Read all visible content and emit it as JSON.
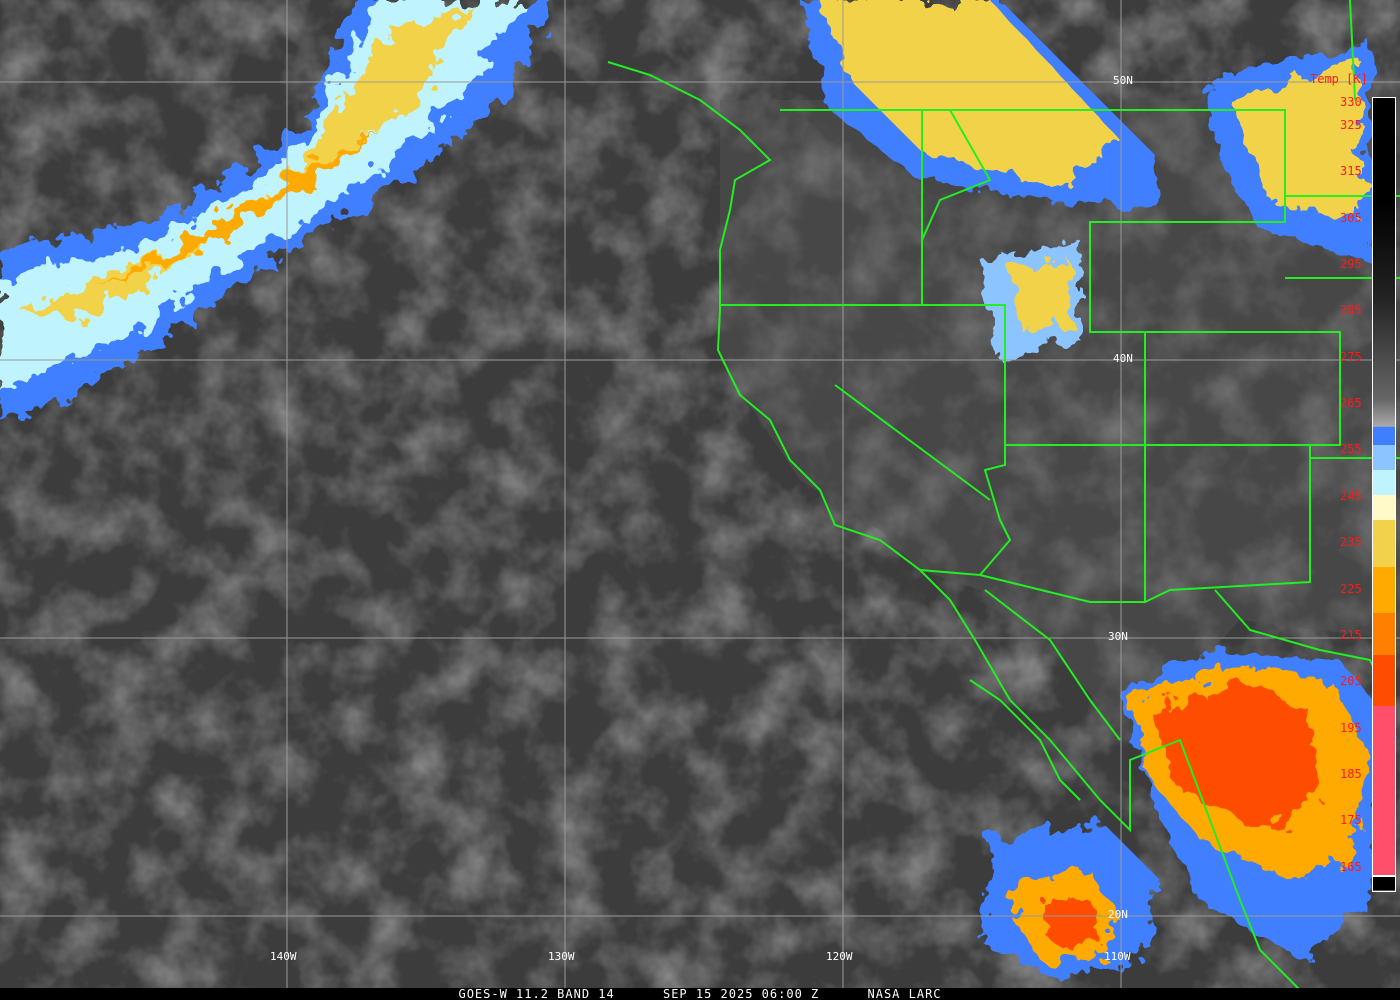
{
  "caption": {
    "satellite": "GOES-W 11.2 BAND 14",
    "datetime": "SEP 15 2025 06:00 Z",
    "source": "NASA LARC"
  },
  "colorbar": {
    "title": "Temp [K]",
    "labels": [
      "330",
      "325",
      "315",
      "305",
      "295",
      "285",
      "275",
      "265",
      "255",
      "245",
      "235",
      "225",
      "215",
      "205",
      "195",
      "185",
      "175",
      "165"
    ],
    "colors": {
      "cold_blue": "#3f7fff",
      "light_blue": "#8cc4ff",
      "cyan": "#bff4ff",
      "pale_yellow": "#fffac8",
      "yellow": "#f2d24a",
      "orange": "#ffaa00",
      "dark_orange": "#ff7f00",
      "red_orange": "#ff4d00",
      "pink": "#ff4f6a"
    }
  },
  "grid": {
    "latitudes": [
      "50N",
      "40N",
      "30N",
      "20N"
    ],
    "longitudes": [
      "140W",
      "130W",
      "120W",
      "110W"
    ]
  },
  "border_color": "#22ee22"
}
